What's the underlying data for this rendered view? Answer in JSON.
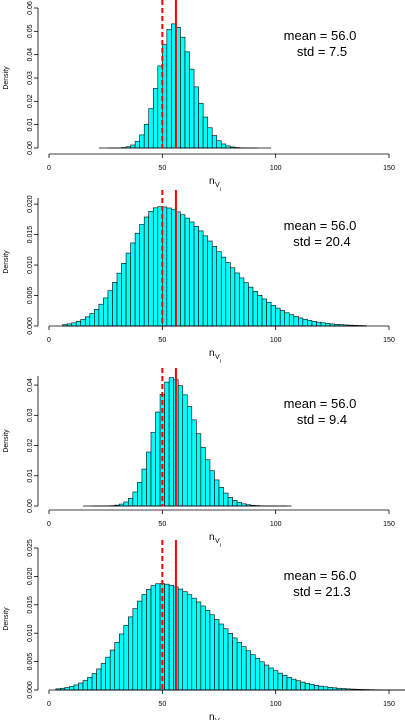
{
  "colors": {
    "bar_fill": "#00ffff",
    "bar_stroke": "#000000",
    "mean_line": "#ff0000"
  },
  "chart_data": [
    {
      "type": "histogram",
      "xlabel": "n",
      "xlabel_sub": "V",
      "xlabel_subsub": "i",
      "ylabel": "Density",
      "xlim": [
        0,
        150
      ],
      "xticks": [
        "0",
        "50",
        "100",
        "150"
      ],
      "ylim": [
        0,
        0.06
      ],
      "yticks": [
        "0.00",
        "0.01",
        "0.02",
        "0.03",
        "0.04",
        "0.05",
        "0.06"
      ],
      "mean": 56.0,
      "std": 7.5,
      "mode": 55,
      "data_range": [
        22,
        98
      ],
      "solid_line_x": 56.0,
      "dashed_line_x": 50,
      "stats_mean_text": "mean = 56.0",
      "stats_std_text": "std = 7.5"
    },
    {
      "type": "histogram",
      "xlabel": "n",
      "xlabel_sub": "V",
      "xlabel_subsub": "i",
      "ylabel": "Density",
      "xlim": [
        0,
        150
      ],
      "xticks": [
        "0",
        "50",
        "100",
        "150"
      ],
      "ylim": [
        0,
        0.021
      ],
      "yticks": [
        "0.000",
        "0.005",
        "0.010",
        "0.015",
        "0.020"
      ],
      "mean": 56.0,
      "std": 20.4,
      "mode": 49,
      "data_range": [
        6,
        140
      ],
      "solid_line_x": 56.0,
      "dashed_line_x": 50,
      "stats_mean_text": "mean = 56.0",
      "stats_std_text": "std = 20.4"
    },
    {
      "type": "histogram",
      "xlabel": "n",
      "xlabel_sub": "V",
      "xlabel_subsub": "i",
      "ylabel": "Density",
      "xlim": [
        0,
        150
      ],
      "xticks": [
        "0",
        "50",
        "100",
        "150"
      ],
      "ylim": [
        0,
        0.043
      ],
      "yticks": [
        "0.00",
        "0.01",
        "0.02",
        "0.03",
        "0.04"
      ],
      "mean": 56.0,
      "std": 9.4,
      "mode": 54,
      "data_range": [
        15,
        107
      ],
      "solid_line_x": 56.0,
      "dashed_line_x": 50,
      "stats_mean_text": "mean = 56.0",
      "stats_std_text": "std = 9.4"
    },
    {
      "type": "histogram",
      "xlabel": "n",
      "xlabel_sub": "V",
      "xlabel_subsub": "i",
      "ylabel": "Density",
      "xlim": [
        0,
        150
      ],
      "xticks": [
        "0",
        "50",
        "100",
        "150"
      ],
      "ylim": [
        0,
        0.025
      ],
      "yticks": [
        "0.000",
        "0.005",
        "0.010",
        "0.015",
        "0.020",
        "0.025"
      ],
      "mean": 56.0,
      "std": 21.3,
      "mode": 49,
      "data_range": [
        3,
        160
      ],
      "solid_line_x": 56.0,
      "dashed_line_x": 50,
      "stats_mean_text": "mean = 56.0",
      "stats_std_text": "std = 21.3"
    }
  ]
}
